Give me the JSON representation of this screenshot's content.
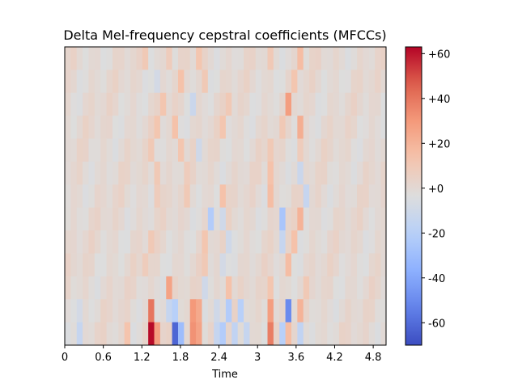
{
  "chart_data": {
    "type": "heatmap",
    "title": "Delta Mel-frequency cepstral coefficients (MFCCs)",
    "xlabel": "Time",
    "ylabel": "",
    "xlim": [
      0,
      5.0
    ],
    "x_ticks": [
      0,
      0.6,
      1.2,
      1.8,
      2.4,
      3,
      3.6,
      4.2,
      4.8
    ],
    "x_tick_labels": [
      "0",
      "0.6",
      "1.2",
      "1.8",
      "2.4",
      "3",
      "3.6",
      "4.2",
      "4.8"
    ],
    "n_coefficients": 13,
    "frame_duration": 0.0928,
    "n_frames": 54,
    "colorbar": {
      "cmap": "coolwarm",
      "vmin": -70,
      "vmax": 63,
      "ticks": [
        60,
        40,
        20,
        0,
        -20,
        -40,
        -60
      ],
      "tick_labels": [
        "+60",
        "+40",
        "+20",
        "+0",
        "-20",
        "-40",
        "-60"
      ]
    },
    "events": [
      {
        "coef": 12,
        "t": 0.15,
        "v": -14
      },
      {
        "coef": 11,
        "t": 0.15,
        "v": -8
      },
      {
        "coef": 12,
        "t": 0.95,
        "v": 13
      },
      {
        "coef": 12,
        "t": 1.3,
        "v": 62
      },
      {
        "coef": 12,
        "t": 1.4,
        "v": 28
      },
      {
        "coef": 12,
        "t": 1.7,
        "v": -62
      },
      {
        "coef": 12,
        "t": 1.8,
        "v": -30
      },
      {
        "coef": 12,
        "t": 1.95,
        "v": 32
      },
      {
        "coef": 12,
        "t": 2.05,
        "v": 26
      },
      {
        "coef": 12,
        "t": 2.3,
        "v": -14
      },
      {
        "coef": 12,
        "t": 2.45,
        "v": -22
      },
      {
        "coef": 12,
        "t": 2.6,
        "v": -16
      },
      {
        "coef": 12,
        "t": 2.75,
        "v": -14
      },
      {
        "coef": 12,
        "t": 3.2,
        "v": 38
      },
      {
        "coef": 12,
        "t": 3.35,
        "v": -20
      },
      {
        "coef": 12,
        "t": 3.45,
        "v": 16
      },
      {
        "coef": 12,
        "t": 3.6,
        "v": -16
      },
      {
        "coef": 11,
        "t": 1.3,
        "v": 40
      },
      {
        "coef": 11,
        "t": 1.55,
        "v": -14
      },
      {
        "coef": 11,
        "t": 1.7,
        "v": -20
      },
      {
        "coef": 11,
        "t": 1.95,
        "v": 30
      },
      {
        "coef": 11,
        "t": 2.05,
        "v": 24
      },
      {
        "coef": 11,
        "t": 2.35,
        "v": -10
      },
      {
        "coef": 11,
        "t": 2.5,
        "v": -22
      },
      {
        "coef": 11,
        "t": 2.65,
        "v": -20
      },
      {
        "coef": 11,
        "t": 3.2,
        "v": 28
      },
      {
        "coef": 11,
        "t": 3.4,
        "v": -50
      },
      {
        "coef": 11,
        "t": 3.6,
        "v": 20
      },
      {
        "coef": 10,
        "t": 1.6,
        "v": 26
      },
      {
        "coef": 10,
        "t": 2.1,
        "v": -10
      },
      {
        "coef": 10,
        "t": 2.5,
        "v": 14
      },
      {
        "coef": 10,
        "t": 3.2,
        "v": 12
      },
      {
        "coef": 10,
        "t": 3.75,
        "v": 10
      },
      {
        "coef": 9,
        "t": 1.2,
        "v": 8
      },
      {
        "coef": 9,
        "t": 2.1,
        "v": 10
      },
      {
        "coef": 9,
        "t": 2.45,
        "v": -8
      },
      {
        "coef": 9,
        "t": 3.4,
        "v": 16
      },
      {
        "coef": 8,
        "t": 1.3,
        "v": 10
      },
      {
        "coef": 8,
        "t": 2.1,
        "v": 12
      },
      {
        "coef": 8,
        "t": 2.5,
        "v": -10
      },
      {
        "coef": 8,
        "t": 3.3,
        "v": -14
      },
      {
        "coef": 8,
        "t": 3.5,
        "v": 14
      },
      {
        "coef": 7,
        "t": 2.2,
        "v": -22
      },
      {
        "coef": 7,
        "t": 2.45,
        "v": -10
      },
      {
        "coef": 7,
        "t": 3.3,
        "v": -26
      },
      {
        "coef": 7,
        "t": 3.6,
        "v": 20
      },
      {
        "coef": 6,
        "t": 1.4,
        "v": 8
      },
      {
        "coef": 6,
        "t": 1.85,
        "v": 10
      },
      {
        "coef": 6,
        "t": 2.45,
        "v": 14
      },
      {
        "coef": 6,
        "t": 3.2,
        "v": 16
      },
      {
        "coef": 6,
        "t": 3.7,
        "v": -14
      },
      {
        "coef": 5,
        "t": 1.35,
        "v": 10
      },
      {
        "coef": 5,
        "t": 1.85,
        "v": 8
      },
      {
        "coef": 5,
        "t": 3.15,
        "v": 14
      },
      {
        "coef": 5,
        "t": 3.65,
        "v": -12
      },
      {
        "coef": 4,
        "t": 1.3,
        "v": 10
      },
      {
        "coef": 4,
        "t": 1.75,
        "v": 12
      },
      {
        "coef": 4,
        "t": 2.05,
        "v": -10
      },
      {
        "coef": 4,
        "t": 3.15,
        "v": 10
      },
      {
        "coef": 4,
        "t": 3.6,
        "v": 8
      },
      {
        "coef": 3,
        "t": 1.35,
        "v": 12
      },
      {
        "coef": 3,
        "t": 1.7,
        "v": 14
      },
      {
        "coef": 3,
        "t": 2.45,
        "v": 12
      },
      {
        "coef": 3,
        "t": 3.3,
        "v": 10
      },
      {
        "coef": 3,
        "t": 3.6,
        "v": 22
      },
      {
        "coef": 2,
        "t": 1.5,
        "v": 12
      },
      {
        "coef": 2,
        "t": 1.95,
        "v": -12
      },
      {
        "coef": 2,
        "t": 2.5,
        "v": 10
      },
      {
        "coef": 2,
        "t": 3.45,
        "v": 28
      },
      {
        "coef": 1,
        "t": 1.4,
        "v": -8
      },
      {
        "coef": 1,
        "t": 1.75,
        "v": 14
      },
      {
        "coef": 1,
        "t": 2.15,
        "v": 10
      },
      {
        "coef": 1,
        "t": 3.5,
        "v": 12
      },
      {
        "coef": 0,
        "t": 1.25,
        "v": 10
      },
      {
        "coef": 0,
        "t": 1.55,
        "v": 8
      },
      {
        "coef": 0,
        "t": 2.05,
        "v": 12
      },
      {
        "coef": 0,
        "t": 3.15,
        "v": 10
      },
      {
        "coef": 0,
        "t": 3.65,
        "v": 16
      }
    ]
  }
}
